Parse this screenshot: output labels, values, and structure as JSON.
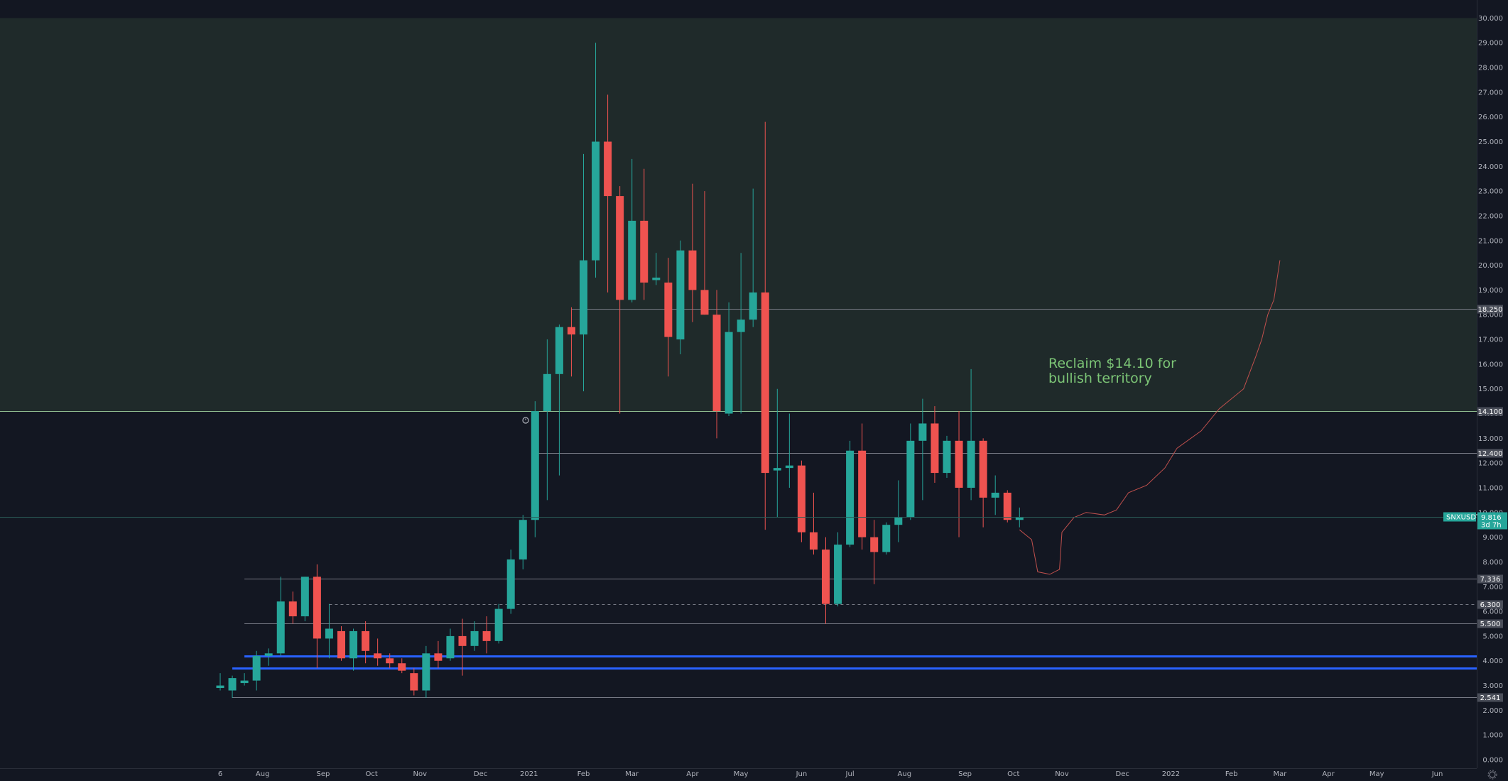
{
  "chart_data": {
    "type": "candlestick",
    "symbol": "SNXUSDT",
    "y_axis": {
      "min": 0,
      "max": 30,
      "ticks": [
        "0.000",
        "1.000",
        "2.000",
        "3.000",
        "4.000",
        "5.000",
        "6.000",
        "7.000",
        "8.000",
        "9.000",
        "10.000",
        "11.000",
        "12.000",
        "13.000",
        "14.000",
        "15.000",
        "16.000",
        "17.000",
        "18.000",
        "19.000",
        "20.000",
        "21.000",
        "22.000",
        "23.000",
        "24.000",
        "25.000",
        "26.000",
        "27.000",
        "28.000",
        "29.000",
        "30.000"
      ]
    },
    "x_axis": {
      "labels": [
        "6",
        "Aug",
        "Sep",
        "Oct",
        "Nov",
        "Dec",
        "2021",
        "Feb",
        "Mar",
        "Apr",
        "May",
        "Jun",
        "Jul",
        "Aug",
        "Sep",
        "Oct",
        "Nov",
        "Dec",
        "2022",
        "Feb",
        "Mar",
        "Apr",
        "May",
        "Jun"
      ],
      "label_bar_index": [
        0,
        3.5,
        8.5,
        12.5,
        16.5,
        21.5,
        25.5,
        30,
        34,
        39,
        43,
        48,
        52,
        56.5,
        61.5,
        65.5,
        69.5,
        74.5,
        78.5,
        83.5,
        87.5,
        91.5,
        95.5,
        100.5
      ]
    },
    "candles": [
      {
        "o": 2.9,
        "h": 3.5,
        "l": 2.8,
        "c": 3.0
      },
      {
        "o": 2.8,
        "h": 3.4,
        "l": 2.5,
        "c": 3.3
      },
      {
        "o": 3.1,
        "h": 3.5,
        "l": 3.0,
        "c": 3.2
      },
      {
        "o": 3.2,
        "h": 4.4,
        "l": 2.8,
        "c": 4.2
      },
      {
        "o": 4.2,
        "h": 4.5,
        "l": 3.8,
        "c": 4.3
      },
      {
        "o": 4.3,
        "h": 7.4,
        "l": 4.2,
        "c": 6.4
      },
      {
        "o": 6.4,
        "h": 6.8,
        "l": 5.5,
        "c": 5.8
      },
      {
        "o": 5.8,
        "h": 7.4,
        "l": 5.6,
        "c": 7.4
      },
      {
        "o": 7.4,
        "h": 7.9,
        "l": 3.7,
        "c": 4.9
      },
      {
        "o": 4.9,
        "h": 6.3,
        "l": 4.1,
        "c": 5.3
      },
      {
        "o": 5.2,
        "h": 5.4,
        "l": 4.0,
        "c": 4.1
      },
      {
        "o": 4.1,
        "h": 5.3,
        "l": 3.6,
        "c": 5.2
      },
      {
        "o": 5.2,
        "h": 5.6,
        "l": 3.9,
        "c": 4.4
      },
      {
        "o": 4.3,
        "h": 4.9,
        "l": 3.8,
        "c": 4.1
      },
      {
        "o": 4.1,
        "h": 4.3,
        "l": 3.7,
        "c": 3.9
      },
      {
        "o": 3.9,
        "h": 4.1,
        "l": 3.5,
        "c": 3.6
      },
      {
        "o": 3.5,
        "h": 3.7,
        "l": 2.6,
        "c": 2.8
      },
      {
        "o": 2.8,
        "h": 4.6,
        "l": 2.5,
        "c": 4.3
      },
      {
        "o": 4.3,
        "h": 4.8,
        "l": 3.7,
        "c": 4.0
      },
      {
        "o": 4.1,
        "h": 5.3,
        "l": 4.0,
        "c": 5.0
      },
      {
        "o": 5.0,
        "h": 5.7,
        "l": 3.4,
        "c": 4.6
      },
      {
        "o": 4.6,
        "h": 5.6,
        "l": 4.4,
        "c": 5.2
      },
      {
        "o": 5.2,
        "h": 5.8,
        "l": 4.3,
        "c": 4.8
      },
      {
        "o": 4.8,
        "h": 6.3,
        "l": 4.7,
        "c": 6.1
      },
      {
        "o": 6.1,
        "h": 8.5,
        "l": 5.9,
        "c": 8.1
      },
      {
        "o": 8.1,
        "h": 9.9,
        "l": 7.7,
        "c": 9.7
      },
      {
        "o": 9.7,
        "h": 14.5,
        "l": 9.0,
        "c": 14.1
      },
      {
        "o": 14.1,
        "h": 17.0,
        "l": 10.5,
        "c": 15.6
      },
      {
        "o": 15.6,
        "h": 17.6,
        "l": 11.5,
        "c": 17.5
      },
      {
        "o": 17.5,
        "h": 18.3,
        "l": 15.5,
        "c": 17.2
      },
      {
        "o": 17.2,
        "h": 24.5,
        "l": 14.9,
        "c": 20.2
      },
      {
        "o": 20.2,
        "h": 29.0,
        "l": 19.5,
        "c": 25.0
      },
      {
        "o": 25.0,
        "h": 26.9,
        "l": 18.9,
        "c": 22.8
      },
      {
        "o": 22.8,
        "h": 23.2,
        "l": 14.0,
        "c": 18.6
      },
      {
        "o": 18.6,
        "h": 24.3,
        "l": 18.5,
        "c": 21.8
      },
      {
        "o": 21.8,
        "h": 23.9,
        "l": 18.6,
        "c": 19.3
      },
      {
        "o": 19.4,
        "h": 20.5,
        "l": 19.2,
        "c": 19.5
      },
      {
        "o": 19.3,
        "h": 20.3,
        "l": 15.5,
        "c": 17.1
      },
      {
        "o": 17.0,
        "h": 21.0,
        "l": 16.4,
        "c": 20.6
      },
      {
        "o": 20.6,
        "h": 23.3,
        "l": 17.7,
        "c": 19.0
      },
      {
        "o": 19.0,
        "h": 23.0,
        "l": 18.0,
        "c": 18.0
      },
      {
        "o": 18.0,
        "h": 19.0,
        "l": 13.0,
        "c": 14.1
      },
      {
        "o": 14.0,
        "h": 18.5,
        "l": 13.9,
        "c": 17.3
      },
      {
        "o": 17.3,
        "h": 20.5,
        "l": 14.0,
        "c": 17.8
      },
      {
        "o": 17.8,
        "h": 23.1,
        "l": 17.5,
        "c": 18.9
      },
      {
        "o": 18.9,
        "h": 25.8,
        "l": 9.3,
        "c": 11.6
      },
      {
        "o": 11.7,
        "h": 15.0,
        "l": 9.8,
        "c": 11.8
      },
      {
        "o": 11.8,
        "h": 14.0,
        "l": 11.0,
        "c": 11.9
      },
      {
        "o": 11.9,
        "h": 12.1,
        "l": 8.8,
        "c": 9.2
      },
      {
        "o": 9.2,
        "h": 10.8,
        "l": 8.3,
        "c": 8.5
      },
      {
        "o": 8.5,
        "h": 9.0,
        "l": 5.5,
        "c": 6.3
      },
      {
        "o": 6.3,
        "h": 9.2,
        "l": 6.2,
        "c": 8.7
      },
      {
        "o": 8.7,
        "h": 12.9,
        "l": 8.6,
        "c": 12.5
      },
      {
        "o": 12.5,
        "h": 13.6,
        "l": 8.5,
        "c": 9.0
      },
      {
        "o": 9.0,
        "h": 9.7,
        "l": 7.1,
        "c": 8.4
      },
      {
        "o": 8.4,
        "h": 9.6,
        "l": 8.3,
        "c": 9.5
      },
      {
        "o": 9.5,
        "h": 11.3,
        "l": 8.8,
        "c": 9.8
      },
      {
        "o": 9.8,
        "h": 13.6,
        "l": 9.7,
        "c": 12.9
      },
      {
        "o": 12.9,
        "h": 14.6,
        "l": 10.5,
        "c": 13.6
      },
      {
        "o": 13.6,
        "h": 14.3,
        "l": 11.2,
        "c": 11.6
      },
      {
        "o": 11.6,
        "h": 13.1,
        "l": 11.4,
        "c": 12.9
      },
      {
        "o": 12.9,
        "h": 14.1,
        "l": 9.0,
        "c": 11.0
      },
      {
        "o": 11.0,
        "h": 15.8,
        "l": 10.5,
        "c": 12.9
      },
      {
        "o": 12.9,
        "h": 13.0,
        "l": 9.4,
        "c": 10.6
      },
      {
        "o": 10.6,
        "h": 11.5,
        "l": 9.9,
        "c": 10.8
      },
      {
        "o": 10.8,
        "h": 10.9,
        "l": 9.6,
        "c": 9.7
      },
      {
        "o": 9.7,
        "h": 10.2,
        "l": 9.4,
        "c": 9.816
      }
    ],
    "projection": [
      [
        66,
        9.3
      ],
      [
        67,
        8.9
      ],
      [
        67.5,
        7.6
      ],
      [
        68.5,
        7.5
      ],
      [
        69.3,
        7.7
      ],
      [
        69.5,
        9.2
      ],
      [
        70.5,
        9.8
      ],
      [
        71.5,
        10.0
      ],
      [
        73,
        9.9
      ],
      [
        74,
        10.1
      ],
      [
        75,
        10.8
      ],
      [
        76.5,
        11.1
      ],
      [
        78,
        11.8
      ],
      [
        79,
        12.6
      ],
      [
        81,
        13.3
      ],
      [
        82.5,
        14.2
      ],
      [
        83.5,
        14.6
      ],
      [
        84.5,
        15.0
      ],
      [
        85.5,
        16.3
      ],
      [
        86,
        17.0
      ],
      [
        86.5,
        18.0
      ],
      [
        87,
        18.6
      ],
      [
        87.5,
        20.2
      ]
    ],
    "levels": [
      {
        "value": 18.25,
        "label": "18.250",
        "color": "#787b86",
        "style": "solid",
        "from_bar": 29
      },
      {
        "value": 14.1,
        "label": "14.100",
        "color": "#8fbc8f",
        "style": "solid",
        "from_bar": -30
      },
      {
        "value": 12.4,
        "label": "12.400",
        "color": "#787b86",
        "style": "solid",
        "from_bar": 26
      },
      {
        "value": 7.336,
        "label": "7.336",
        "color": "#787b86",
        "style": "solid",
        "from_bar": 2
      },
      {
        "value": 6.3,
        "label": "6.300",
        "color": "#787b86",
        "style": "dashed",
        "from_bar": 9
      },
      {
        "value": 5.5,
        "label": "5.500",
        "color": "#787b86",
        "style": "solid",
        "from_bar": 2
      },
      {
        "value": 4.2,
        "label": "",
        "color": "#2962ff",
        "style": "thick",
        "from_bar": 2
      },
      {
        "value": 3.7,
        "label": "",
        "color": "#2962ff",
        "style": "thick",
        "from_bar": 1
      },
      {
        "value": 2.541,
        "label": "2.541",
        "color": "#787b86",
        "style": "solid",
        "from_bar": 1
      }
    ],
    "bullish_zone": {
      "from": 14.1,
      "to": 30,
      "color": "#1f2a2a"
    },
    "current_price": {
      "value": 9.816,
      "label": "9.816",
      "countdown": "3d 7h",
      "symbol": "SNXUSDT"
    },
    "annotation": {
      "lines": [
        "Reclaim $14.10 for",
        "bullish territory"
      ],
      "color": "#7cc576"
    },
    "colors": {
      "up": "#26a69a",
      "down": "#ef5350",
      "wick_up": "#26a69a",
      "wick_down": "#ef5350",
      "projection": "#c0504d",
      "background": "#131722"
    }
  }
}
